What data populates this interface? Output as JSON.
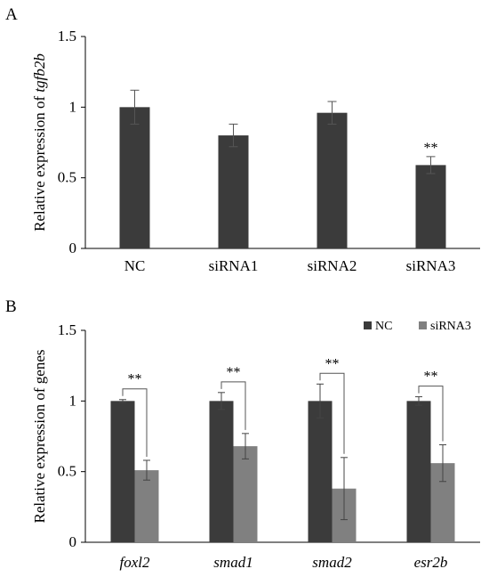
{
  "chart_data": [
    {
      "panel_label": "A",
      "type": "bar",
      "ylabel_prefix": "Relative expression of ",
      "ylabel_gene": "tgfb2b",
      "ylim": [
        0,
        1.5
      ],
      "yticks": [
        "0",
        "0.5",
        "1",
        "1.5"
      ],
      "ytick_values": [
        0,
        0.5,
        1,
        1.5
      ],
      "categories": [
        "NC",
        "siRNA1",
        "siRNA2",
        "siRNA3"
      ],
      "values": [
        1.0,
        0.8,
        0.96,
        0.59
      ],
      "errors": [
        0.12,
        0.08,
        0.08,
        0.06
      ],
      "significance": [
        "",
        "",
        "",
        "**"
      ],
      "color": "#3b3b3b"
    },
    {
      "panel_label": "B",
      "type": "bar",
      "ylabel": "Relative expression of genes",
      "ylim": [
        0,
        1.5
      ],
      "yticks": [
        "0",
        "0.5",
        "1",
        "1.5"
      ],
      "ytick_values": [
        0,
        0.5,
        1,
        1.5
      ],
      "categories": [
        "foxl2",
        "smad1",
        "smad2",
        "esr2b"
      ],
      "series": [
        {
          "name": "NC",
          "values": [
            1.0,
            1.0,
            1.0,
            1.0
          ],
          "errors": [
            0.01,
            0.06,
            0.12,
            0.03
          ],
          "color": "#3b3b3b"
        },
        {
          "name": "siRNA3",
          "values": [
            0.51,
            0.68,
            0.38,
            0.56
          ],
          "errors": [
            0.07,
            0.09,
            0.22,
            0.13
          ],
          "color": "#808080"
        }
      ],
      "significance": [
        "**",
        "**",
        "**",
        "**"
      ],
      "legend_position": "top-right"
    }
  ]
}
